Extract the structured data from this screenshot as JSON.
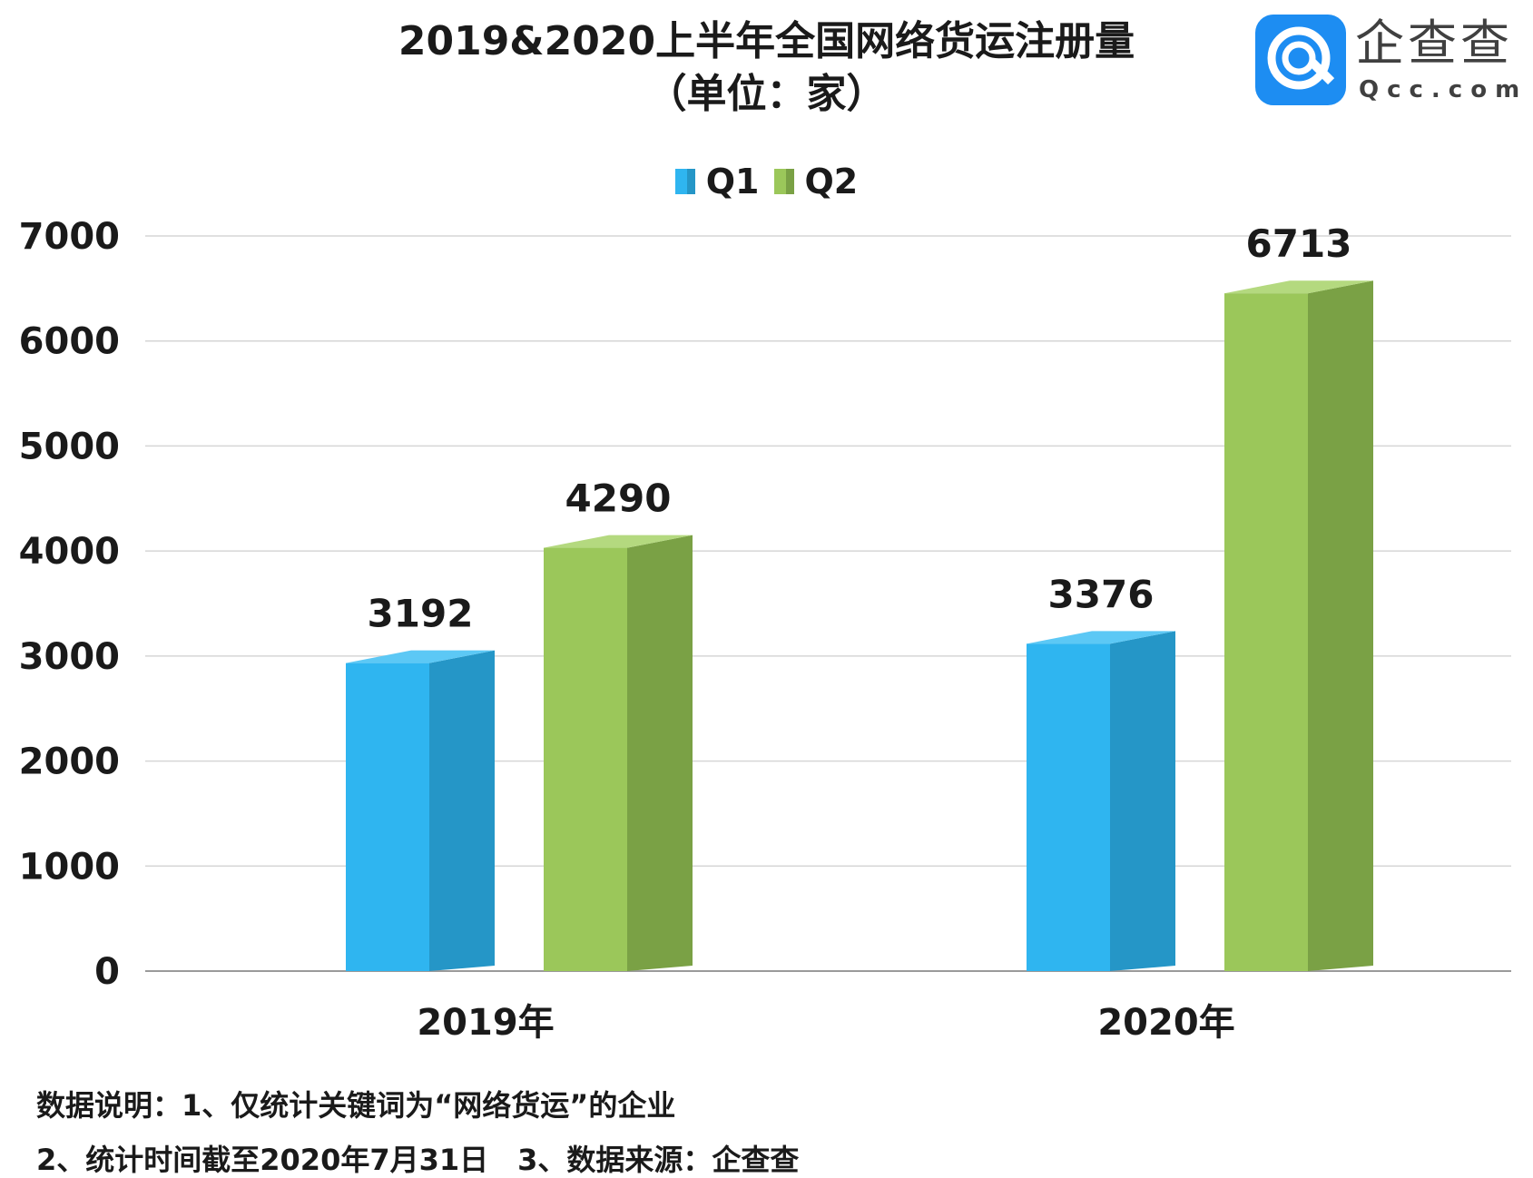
{
  "chart_data": {
    "type": "bar",
    "title": "2019&2020上半年全国网络货运注册量",
    "subtitle": "（单位：家）",
    "categories": [
      "2019年",
      "2020年"
    ],
    "series": [
      {
        "name": "Q1",
        "values": [
          3192,
          3376
        ],
        "color": "#2fb5f0",
        "side_color": "#2596c7",
        "top_color": "#5cc8f5"
      },
      {
        "name": "Q2",
        "values": [
          4290,
          6713
        ],
        "color": "#9bc75a",
        "side_color": "#7aa145",
        "top_color": "#b4d97f"
      }
    ],
    "y_ticks": [
      0,
      1000,
      2000,
      3000,
      4000,
      5000,
      6000,
      7000
    ],
    "ylim": [
      0,
      7000
    ],
    "grid": true,
    "legend_position": "top-center",
    "data_labels": true,
    "style": "3d-bars"
  },
  "logo": {
    "brand_cn": "企查查",
    "brand_en": "Qcc.com",
    "icon": "qcc-logo-icon"
  },
  "footnotes": {
    "line1": "数据说明：1、仅统计关键词为“网络货运”的企业",
    "line2": "2、统计时间截至2020年7月31日　3、数据来源：企查查"
  }
}
